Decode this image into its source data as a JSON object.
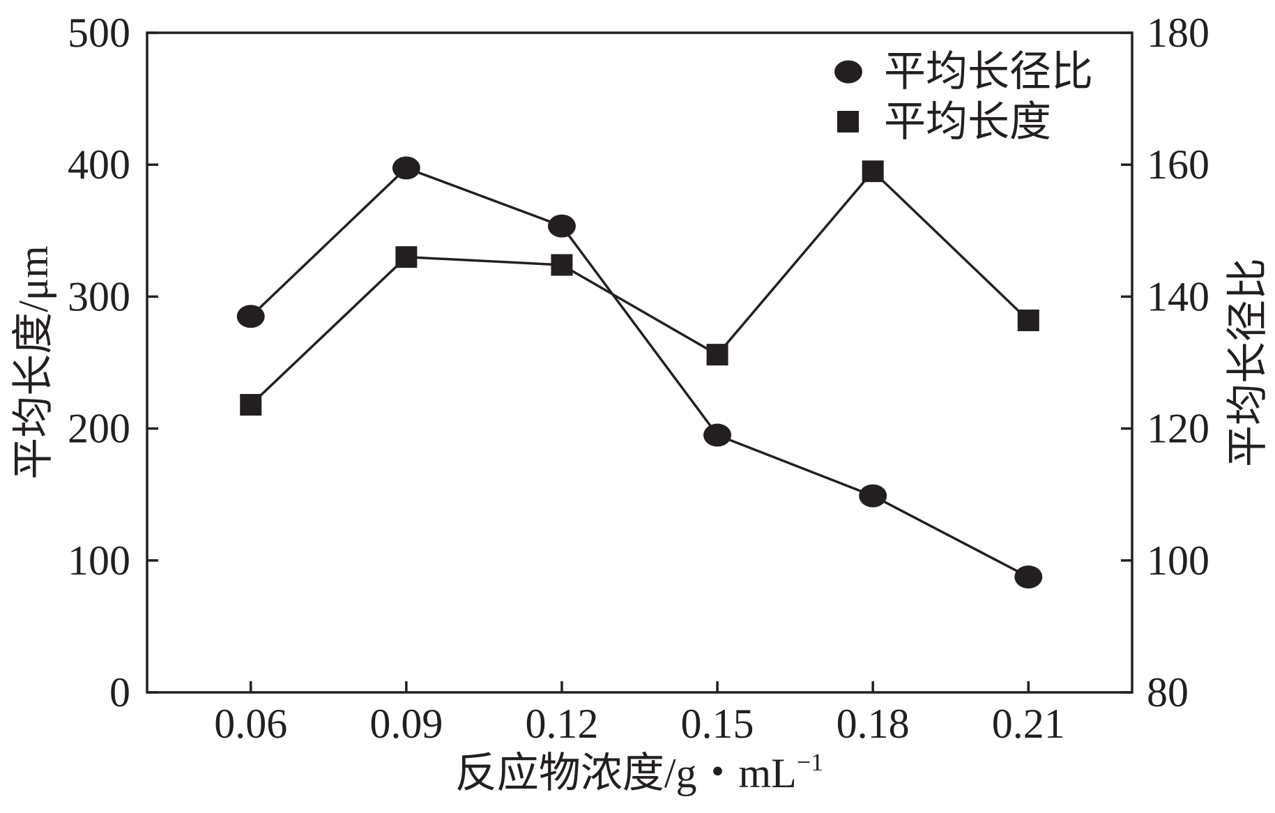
{
  "chart_data": {
    "type": "line",
    "x": [
      0.06,
      0.09,
      0.12,
      0.15,
      0.18,
      0.21
    ],
    "xlim": [
      0.04,
      0.23
    ],
    "xlabel": "反应物浓度/g・mL",
    "xlabel_superscript": "−1",
    "ylabel": "平均长度/μm",
    "ylim": [
      0,
      500
    ],
    "y_ticks": [
      0,
      100,
      200,
      300,
      400,
      500
    ],
    "y2label": "平均长径比",
    "y2lim": [
      80,
      180
    ],
    "y2_ticks": [
      80,
      100,
      120,
      140,
      160,
      180
    ],
    "series": [
      {
        "name": "平均长径比",
        "axis": "right",
        "marker": "circle",
        "values": [
          137,
          159.5,
          150.7,
          119,
          109.8,
          97.5
        ]
      },
      {
        "name": "平均长度",
        "axis": "left",
        "marker": "square",
        "values": [
          218,
          330,
          324,
          256,
          395,
          282
        ]
      }
    ],
    "legend_position": "top-right",
    "grid": false,
    "colors": {
      "ink": "#231f20",
      "background": "#ffffff"
    }
  }
}
